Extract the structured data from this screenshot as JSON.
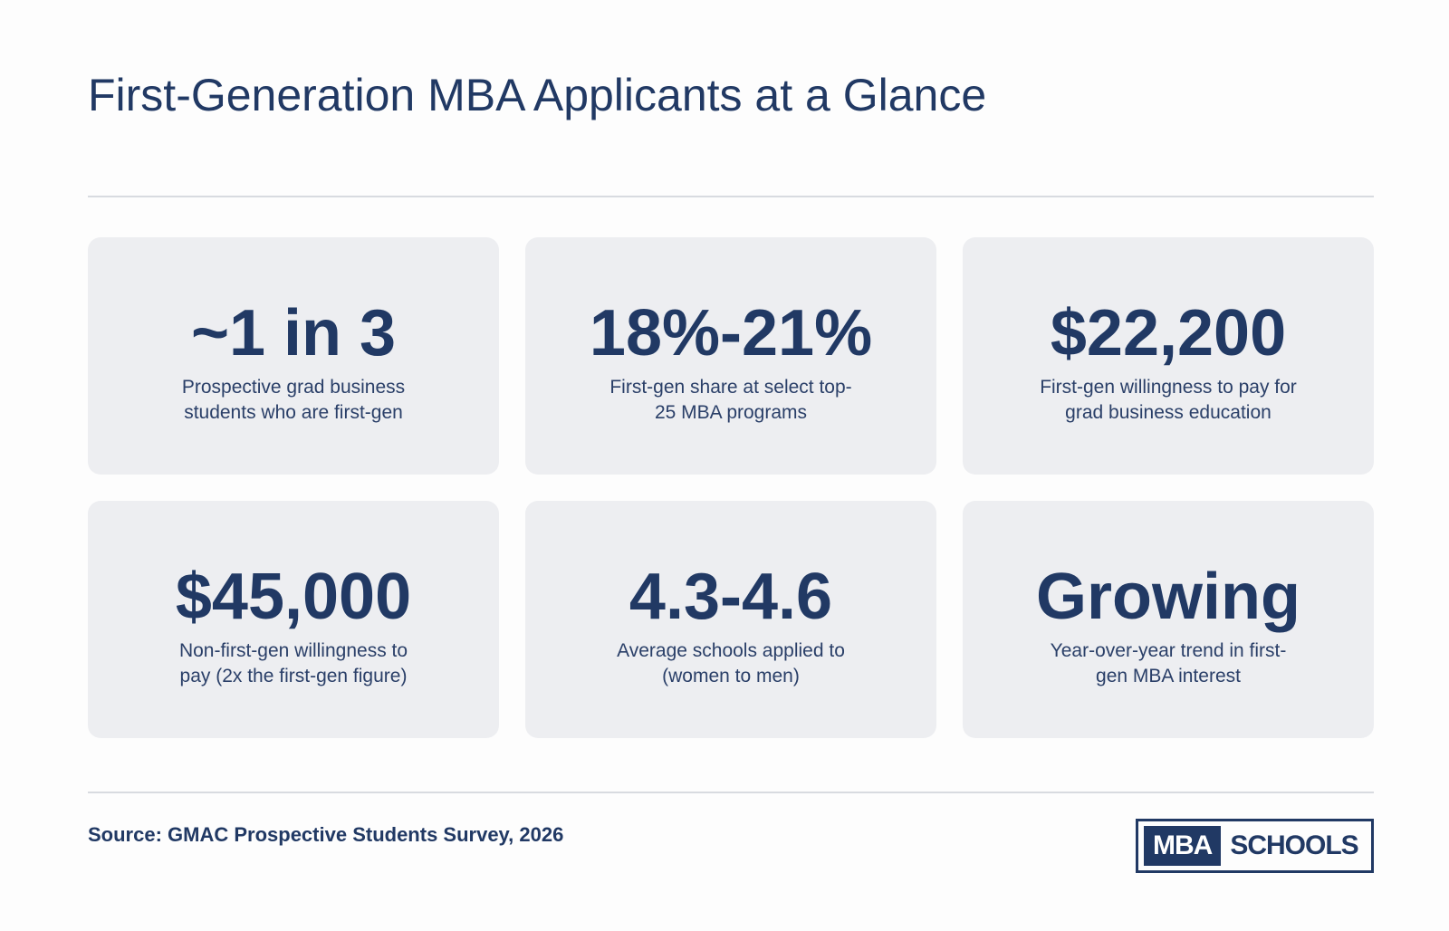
{
  "header": {
    "title": "First-Generation MBA Applicants at a Glance"
  },
  "stats": [
    {
      "value": "~1 in 3",
      "description": "Prospective grad business students who are first-gen"
    },
    {
      "value": "18%-21%",
      "description": "First-gen share at select top-25 MBA programs"
    },
    {
      "value": "$22,200",
      "description": "First-gen willingness to pay for grad business education"
    },
    {
      "value": "$45,000",
      "description": "Non-first-gen willingness to pay (2x the first-gen figure)"
    },
    {
      "value": "4.3-4.6",
      "description": "Average schools applied to (women to men)"
    },
    {
      "value": "Growing",
      "description": "Year-over-year trend in first-gen MBA interest"
    }
  ],
  "footer": {
    "source": "Source: GMAC Prospective Students Survey, 2026",
    "logo": {
      "mba": "MBA",
      "schools": "SCHOOLS"
    }
  },
  "colors": {
    "primary": "#213964",
    "card_background": "#edeef1",
    "divider": "#d8dbe0",
    "page_background": "#fdfdfd"
  }
}
